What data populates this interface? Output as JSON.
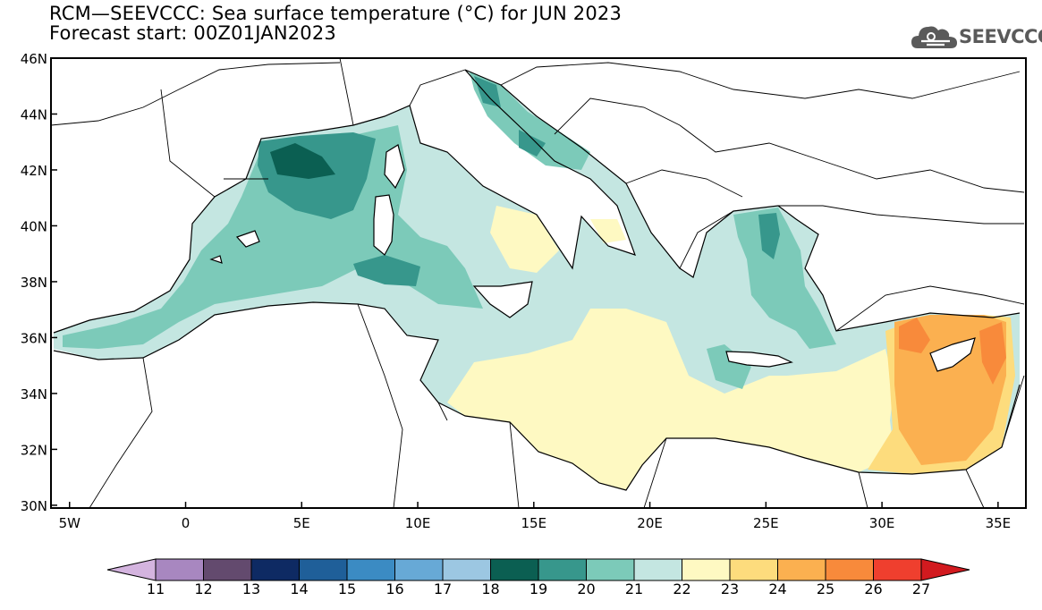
{
  "header": {
    "title_line1": "RCM—SEEVCCC: Sea surface temperature (°C) for JUN 2023",
    "title_line2": "Forecast start: 00Z01JAN2023"
  },
  "logo": {
    "text": "SEEVCCC",
    "icon": "cloud-icon",
    "color": "#5a5a5a"
  },
  "map": {
    "lon_range": [
      -5.8,
      36.2
    ],
    "lat_range": [
      29.9,
      46.0
    ],
    "lat_ticks": [
      {
        "value": 46,
        "label": "46N"
      },
      {
        "value": 44,
        "label": "44N"
      },
      {
        "value": 42,
        "label": "42N"
      },
      {
        "value": 40,
        "label": "40N"
      },
      {
        "value": 38,
        "label": "38N"
      },
      {
        "value": 36,
        "label": "36N"
      },
      {
        "value": 34,
        "label": "34N"
      },
      {
        "value": 32,
        "label": "32N"
      },
      {
        "value": 30,
        "label": "30N"
      }
    ],
    "lon_ticks": [
      {
        "value": -5,
        "label": "5W"
      },
      {
        "value": 0,
        "label": "0"
      },
      {
        "value": 5,
        "label": "5E"
      },
      {
        "value": 10,
        "label": "10E"
      },
      {
        "value": 15,
        "label": "15E"
      },
      {
        "value": 20,
        "label": "20E"
      },
      {
        "value": 25,
        "label": "25E"
      },
      {
        "value": 30,
        "label": "30E"
      },
      {
        "value": 35,
        "label": "35E"
      }
    ]
  },
  "colorbar": {
    "labels": [
      "11",
      "12",
      "13",
      "14",
      "15",
      "16",
      "17",
      "18",
      "19",
      "20",
      "21",
      "22",
      "23",
      "24",
      "25",
      "26",
      "27"
    ],
    "colors": [
      "#a887c0",
      "#634a6e",
      "#0e2a63",
      "#1f5f99",
      "#3b8bc3",
      "#67a9d6",
      "#9cc7e2",
      "#0b5f52",
      "#37978c",
      "#7ccab9",
      "#c4e6e1",
      "#fef9c2",
      "#fddc7d",
      "#fbb050",
      "#f88a3b",
      "#ef3f2e"
    ],
    "under_color": "#d4b4df",
    "over_color": "#d21a1f"
  }
}
